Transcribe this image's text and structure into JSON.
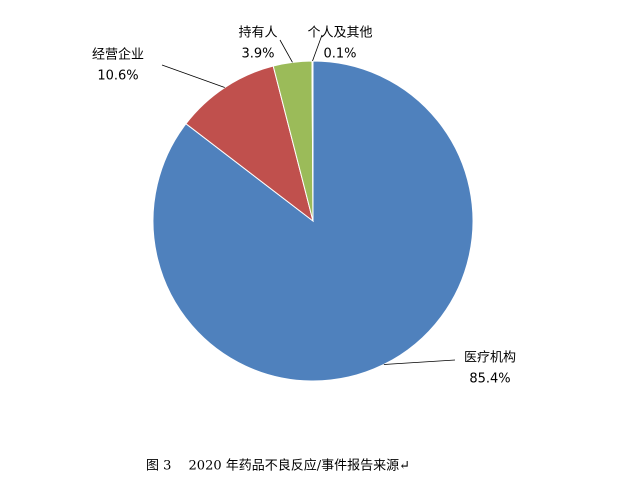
{
  "chart_data": {
    "type": "pie",
    "caption": "图 3　 2020 年药品不良反应/事件报告来源↵",
    "categories": [
      "医疗机构",
      "经营企业",
      "持有人",
      "个人及其他"
    ],
    "values": [
      85.4,
      10.6,
      3.9,
      0.1
    ],
    "value_labels": [
      "85.4%",
      "10.6%",
      "3.9%",
      "0.1%"
    ],
    "colors": [
      "#4f81bd",
      "#c0504d",
      "#9bbb59",
      "#8064a2"
    ]
  }
}
